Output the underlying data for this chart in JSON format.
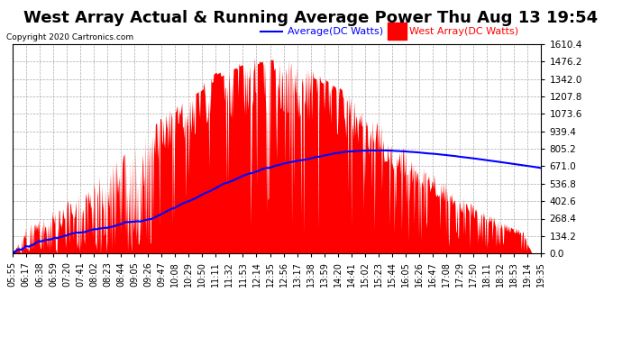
{
  "title": "West Array Actual & Running Average Power Thu Aug 13 19:54",
  "copyright": "Copyright 2020 Cartronics.com",
  "legend_avg": "Average(DC Watts)",
  "legend_west": "West Array(DC Watts)",
  "ymin": 0.0,
  "ymax": 1610.4,
  "ytick_interval": 134.2,
  "background_color": "#ffffff",
  "plot_bg_color": "#ffffff",
  "grid_color": "#aaaaaa",
  "bar_color": "#ff0000",
  "line_color": "#0000ff",
  "title_fontsize": 13,
  "label_fontsize": 7.5,
  "x_labels": [
    "05:55",
    "06:17",
    "06:38",
    "06:59",
    "07:20",
    "07:41",
    "08:02",
    "08:23",
    "08:44",
    "09:05",
    "09:26",
    "09:47",
    "10:08",
    "10:29",
    "10:50",
    "11:11",
    "11:32",
    "11:53",
    "12:14",
    "12:35",
    "12:56",
    "13:17",
    "13:38",
    "13:59",
    "14:20",
    "14:41",
    "15:02",
    "15:23",
    "15:44",
    "16:05",
    "16:26",
    "16:47",
    "17:08",
    "17:29",
    "17:50",
    "18:11",
    "18:32",
    "18:53",
    "19:14",
    "19:35"
  ]
}
